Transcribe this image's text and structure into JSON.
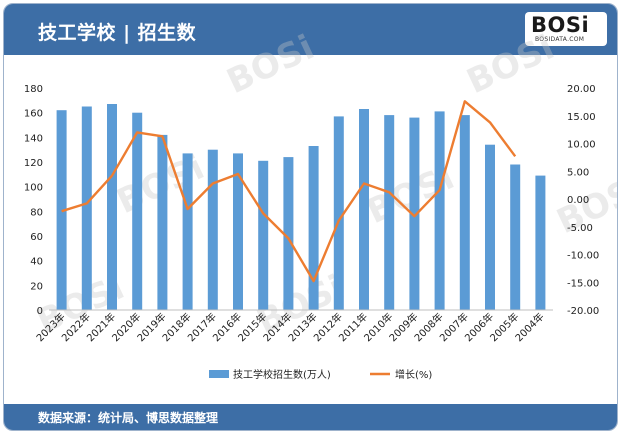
{
  "header": {
    "title": "技工学校 | 招生数"
  },
  "logo": {
    "text": "BOSi",
    "subtext": "BOSIDATA.COM"
  },
  "footer": {
    "source": "数据来源：统计局、博思数据整理"
  },
  "colors": {
    "header_bg": "#3d6ea6",
    "bar": "#5b9bd5",
    "line": "#ed7d31"
  },
  "chart_data": {
    "type": "bar+line",
    "categories": [
      "2023年",
      "2022年",
      "2021年",
      "2020年",
      "2019年",
      "2018年",
      "2017年",
      "2016年",
      "2015年",
      "2014年",
      "2013年",
      "2012年",
      "2011年",
      "2010年",
      "2009年",
      "2008年",
      "2007年",
      "2006年",
      "2005年",
      "2004年"
    ],
    "series": [
      {
        "name": "技工学校招生数(万人)",
        "type": "bar",
        "axis": "left",
        "values": [
          162,
          165,
          167,
          160,
          142,
          127,
          130,
          127,
          121,
          124,
          133,
          157,
          163,
          158,
          156,
          161,
          158,
          134,
          118,
          109
        ]
      },
      {
        "name": "增长(%)",
        "type": "line",
        "axis": "right",
        "values": [
          -2.2,
          -0.8,
          4.2,
          12.0,
          11.3,
          -1.8,
          2.8,
          4.5,
          -2.6,
          -7.1,
          -14.8,
          -3.9,
          2.8,
          1.2,
          -3.1,
          1.6,
          17.6,
          13.8,
          7.7,
          null
        ]
      }
    ],
    "y_left": {
      "min": 0,
      "max": 180,
      "ticks": [
        "0",
        "20",
        "40",
        "60",
        "80",
        "100",
        "120",
        "140",
        "160",
        "180"
      ]
    },
    "y_right": {
      "min": -20,
      "max": 20,
      "ticks": [
        "-20.00",
        "-15.00",
        "-10.00",
        "-5.00",
        "0.00",
        "5.00",
        "10.00",
        "15.00",
        "20.00"
      ]
    },
    "legend_position": "bottom",
    "grid": false
  }
}
